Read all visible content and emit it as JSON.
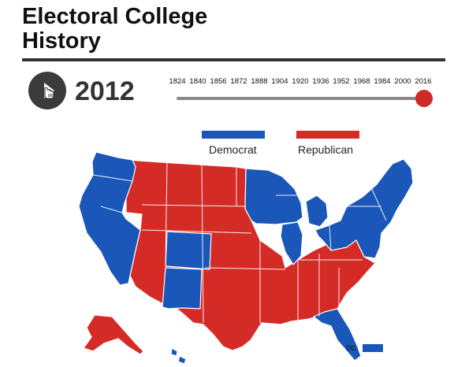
{
  "header": {
    "title_line1": "Electoral College",
    "title_line2": "History"
  },
  "player": {
    "year": "2012",
    "play_icon": "play-icon",
    "cursor_icon": "hand-cursor-icon"
  },
  "timeline": {
    "ticks": [
      "1824",
      "1840",
      "1856",
      "1872",
      "1888",
      "1904",
      "1920",
      "1936",
      "1952",
      "1968",
      "1984",
      "2000",
      "2016"
    ],
    "selected_year": 2012,
    "range": [
      1824,
      2016
    ]
  },
  "legend": {
    "democrat": {
      "label": "Democrat",
      "color": "#1a57b8"
    },
    "republican": {
      "label": "Republican",
      "color": "#d52b27"
    }
  },
  "map": {
    "dc_label": "DC:"
  }
}
